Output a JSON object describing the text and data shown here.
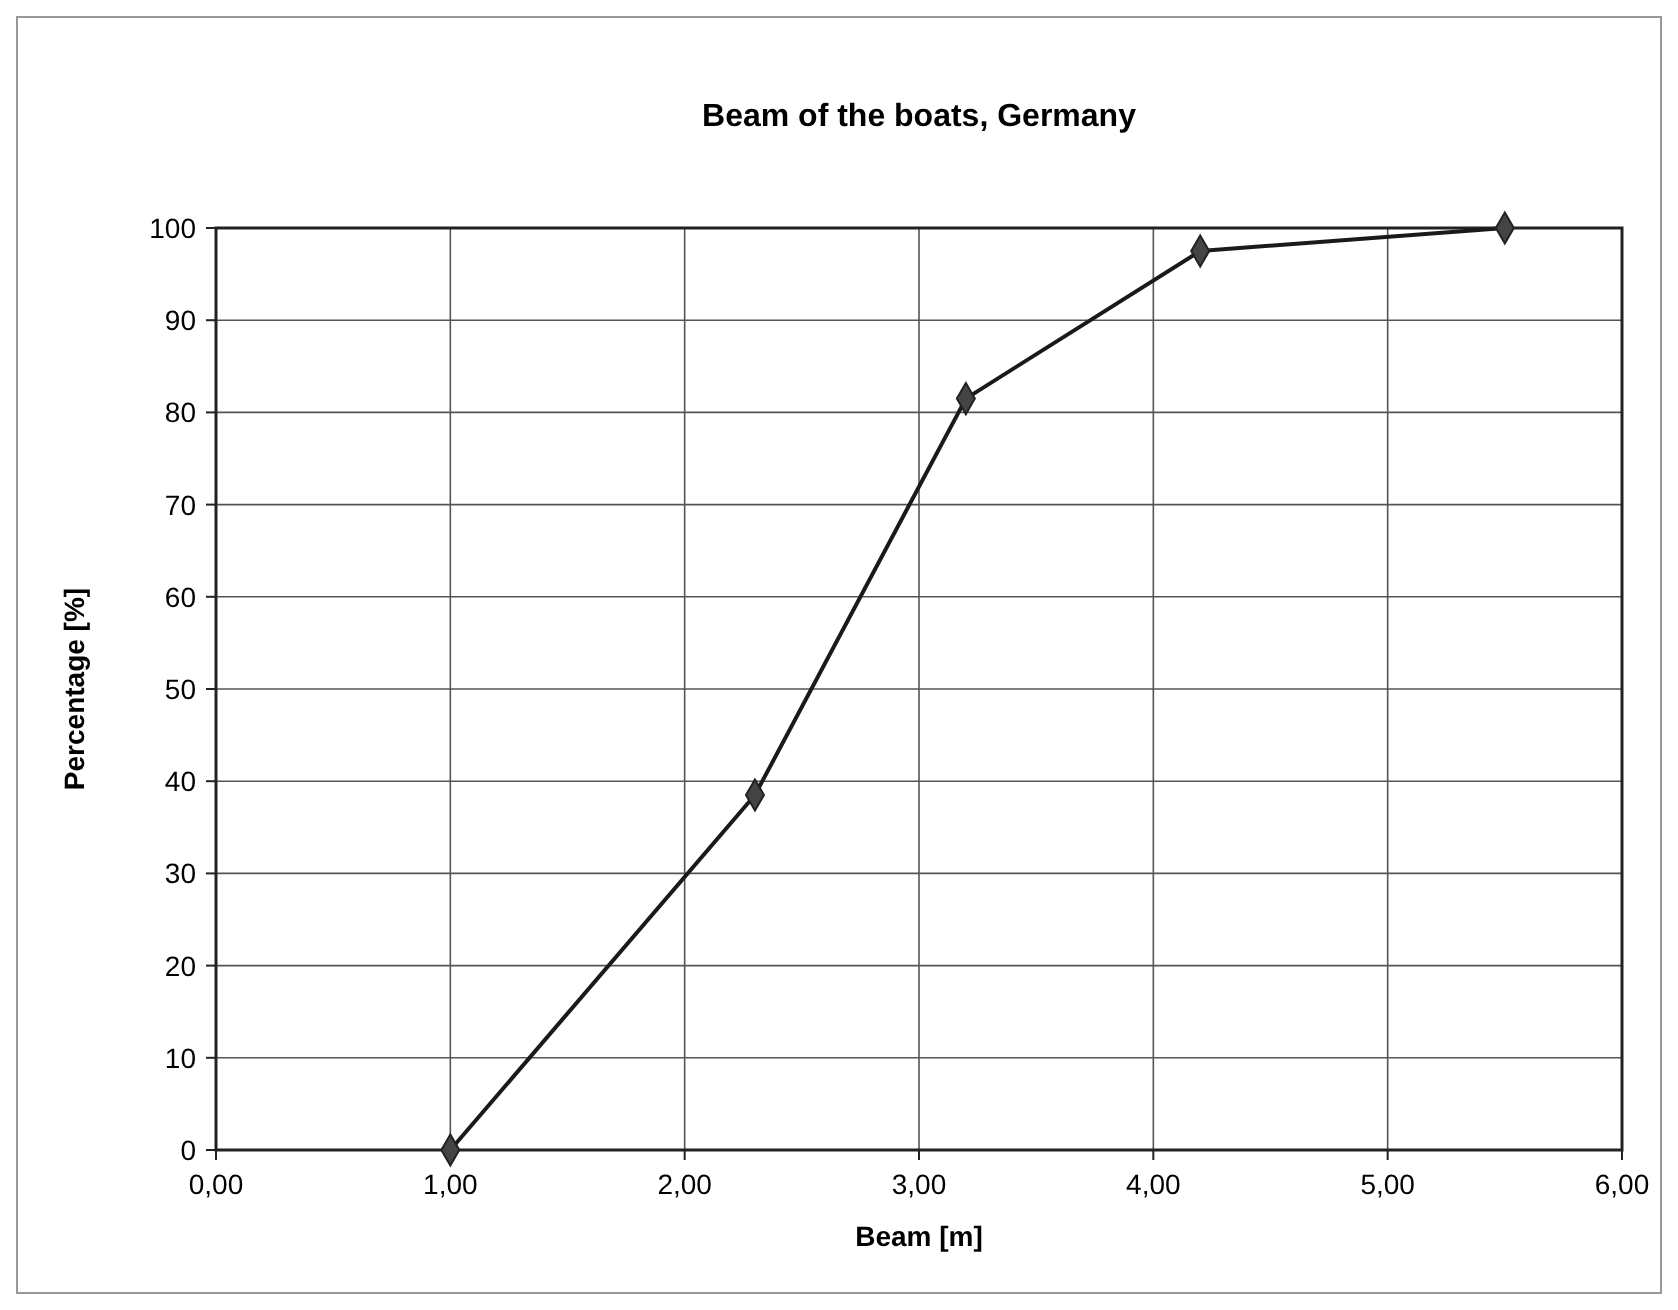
{
  "chart_data": {
    "type": "line",
    "title": "Beam of the boats, Germany",
    "xlabel": "Beam [m]",
    "ylabel": "Percentage [%]",
    "x": [
      1.0,
      2.3,
      3.2,
      4.2,
      5.5
    ],
    "series": [
      {
        "color": "#1a1a1a",
        "values": [
          0,
          38.5,
          81.5,
          97.5,
          100
        ]
      }
    ],
    "xlim": [
      0,
      6
    ],
    "xticks": [
      {
        "value": 0,
        "label": "0,00"
      },
      {
        "value": 1,
        "label": "1,00"
      },
      {
        "value": 2,
        "label": "2,00"
      },
      {
        "value": 3,
        "label": "3,00"
      },
      {
        "value": 4,
        "label": "4,00"
      },
      {
        "value": 5,
        "label": "5,00"
      },
      {
        "value": 6,
        "label": "6,00"
      }
    ],
    "ylim": [
      0,
      100
    ],
    "yticks": [
      0,
      10,
      20,
      30,
      40,
      50,
      60,
      70,
      80,
      90,
      100
    ],
    "grid": true,
    "marker": "diamond",
    "line_style": "solid"
  }
}
